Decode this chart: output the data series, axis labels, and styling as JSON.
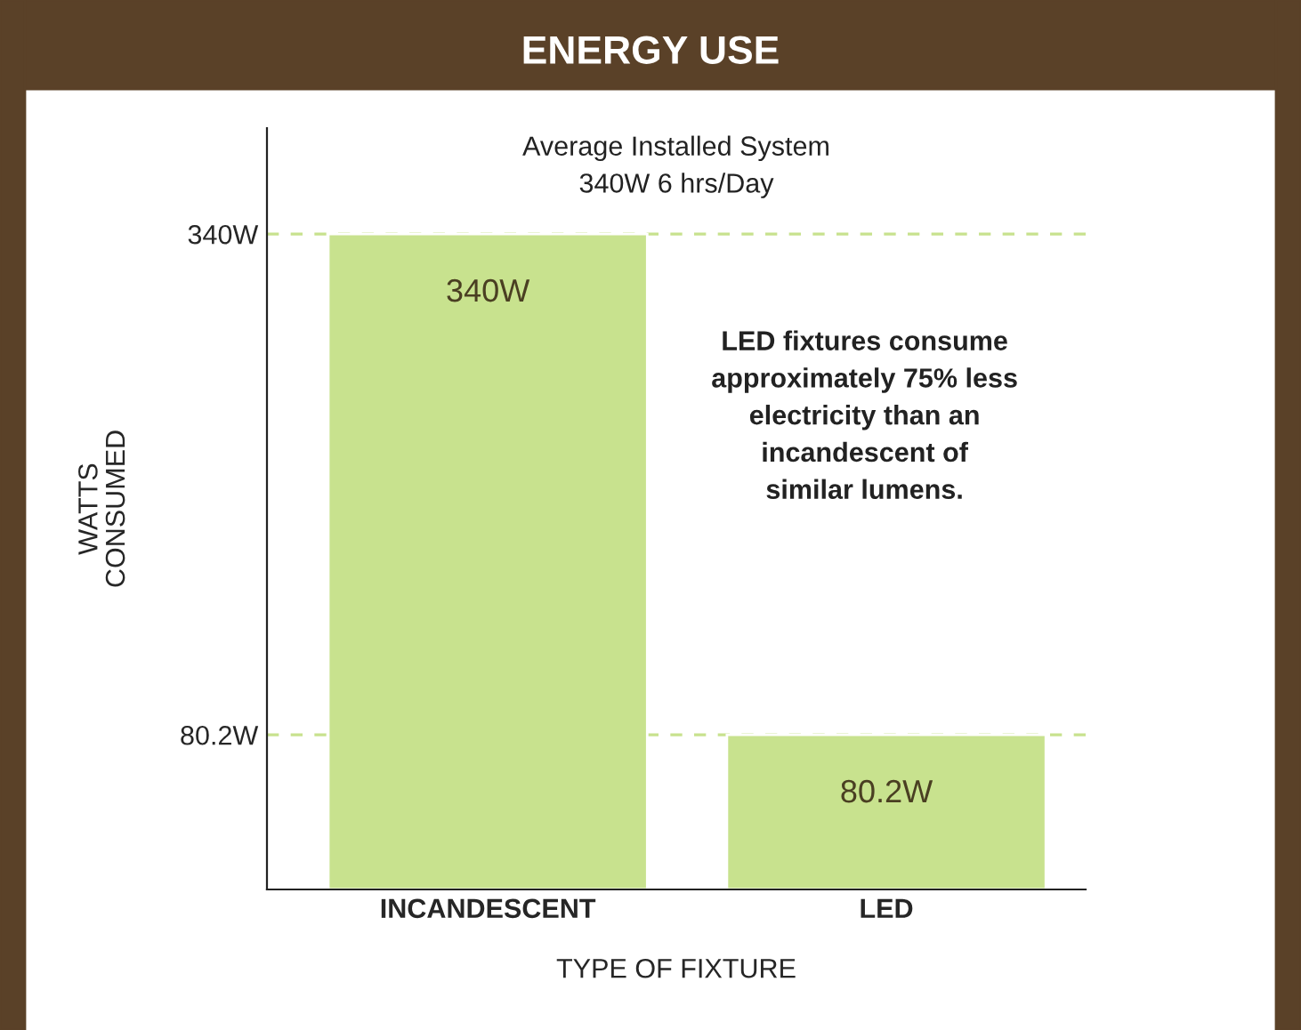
{
  "chart_data": {
    "type": "bar",
    "title": "ENERGY USE",
    "xlabel": "TYPE OF FIXTURE",
    "ylabel": "WATTS\nCONSUMED",
    "categories": [
      "INCANDESCENT",
      "LED"
    ],
    "values": [
      340,
      80.2
    ],
    "color": "#c8e28e",
    "value_labels": [
      "340W",
      "80.2W"
    ],
    "ylim": [
      0,
      395
    ],
    "yticks": [
      {
        "value": 80.2,
        "label": "80.2W"
      },
      {
        "value": 340,
        "label": "340W"
      }
    ],
    "ref_lines": [
      {
        "axis": "y",
        "value": 340,
        "label": null,
        "color": "#c8e28e",
        "line_style": "dashed"
      },
      {
        "axis": "y",
        "value": 80.2,
        "label": null,
        "color": "#c8e28e",
        "line_style": "dashed"
      }
    ],
    "annotations": [
      "Average Installed System\n340W 6 hrs/Day",
      "LED fixtures consume\napproximately 75% less\nelectricity than an\nincandescent of\nsimilar lumens."
    ],
    "grid": false,
    "legend": false
  }
}
